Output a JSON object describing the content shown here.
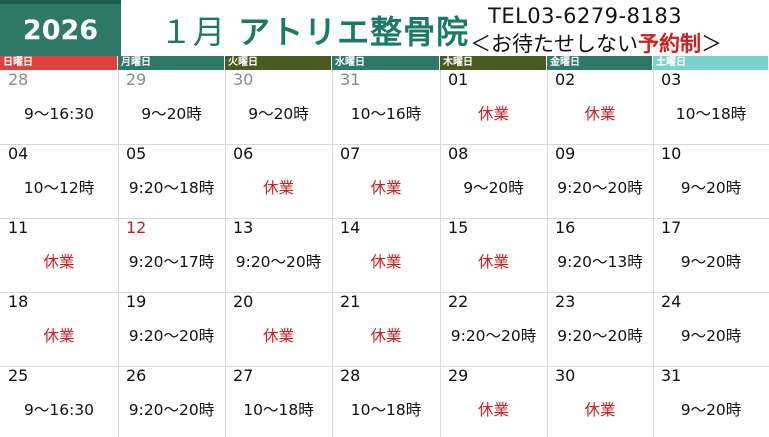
{
  "year": "2026",
  "title": {
    "month": "１月",
    "clinic": "アトリエ整骨院"
  },
  "tel": "TEL03-6279-8183",
  "policy": {
    "prefix": "＜お待たせしない",
    "highlight": "予約制",
    "suffix": "＞"
  },
  "weekdays": [
    {
      "label": "日曜日",
      "color": "#e0403c"
    },
    {
      "label": "月曜日",
      "color": "#2e7868"
    },
    {
      "label": "火曜日",
      "color": "#4a5a20"
    },
    {
      "label": "水曜日",
      "color": "#2e7868"
    },
    {
      "label": "木曜日",
      "color": "#4a5a20"
    },
    {
      "label": "金曜日",
      "color": "#2e7868"
    },
    {
      "label": "土曜日",
      "color": "#7ad3cc"
    }
  ],
  "weeks": [
    [
      {
        "day": "28",
        "hours": "9～16:30",
        "closed": false,
        "prev": true
      },
      {
        "day": "29",
        "hours": "9～20時",
        "closed": false,
        "prev": true
      },
      {
        "day": "30",
        "hours": "9～20時",
        "closed": false,
        "prev": true
      },
      {
        "day": "31",
        "hours": "10～16時",
        "closed": false,
        "prev": true
      },
      {
        "day": "01",
        "hours": "休業",
        "closed": true
      },
      {
        "day": "02",
        "hours": "休業",
        "closed": true
      },
      {
        "day": "03",
        "hours": "10～18時",
        "closed": false
      }
    ],
    [
      {
        "day": "04",
        "hours": "10～12時",
        "closed": false
      },
      {
        "day": "05",
        "hours": "9:20～18時",
        "closed": false
      },
      {
        "day": "06",
        "hours": "休業",
        "closed": true
      },
      {
        "day": "07",
        "hours": "休業",
        "closed": true
      },
      {
        "day": "08",
        "hours": "9～20時",
        "closed": false
      },
      {
        "day": "09",
        "hours": "9:20～20時",
        "closed": false
      },
      {
        "day": "10",
        "hours": "9～20時",
        "closed": false
      }
    ],
    [
      {
        "day": "11",
        "hours": "休業",
        "closed": true
      },
      {
        "day": "12",
        "hours": "9:20～17時",
        "closed": false,
        "holiday": true
      },
      {
        "day": "13",
        "hours": "9:20～20時",
        "closed": false
      },
      {
        "day": "14",
        "hours": "休業",
        "closed": true
      },
      {
        "day": "15",
        "hours": "休業",
        "closed": true
      },
      {
        "day": "16",
        "hours": "9:20～13時",
        "closed": false
      },
      {
        "day": "17",
        "hours": "9～20時",
        "closed": false
      }
    ],
    [
      {
        "day": "18",
        "hours": "休業",
        "closed": true
      },
      {
        "day": "19",
        "hours": "9:20～20時",
        "closed": false
      },
      {
        "day": "20",
        "hours": "休業",
        "closed": true
      },
      {
        "day": "21",
        "hours": "休業",
        "closed": true
      },
      {
        "day": "22",
        "hours": "9:20～20時",
        "closed": false
      },
      {
        "day": "23",
        "hours": "9:20～20時",
        "closed": false
      },
      {
        "day": "24",
        "hours": "9～20時",
        "closed": false
      }
    ],
    [
      {
        "day": "25",
        "hours": "9～16:30",
        "closed": false
      },
      {
        "day": "26",
        "hours": "9:20～20時",
        "closed": false
      },
      {
        "day": "27",
        "hours": "10～18時",
        "closed": false
      },
      {
        "day": "28",
        "hours": "10～18時",
        "closed": false
      },
      {
        "day": "29",
        "hours": "休業",
        "closed": true
      },
      {
        "day": "30",
        "hours": "休業",
        "closed": true
      },
      {
        "day": "31",
        "hours": "9～20時",
        "closed": false
      }
    ]
  ]
}
